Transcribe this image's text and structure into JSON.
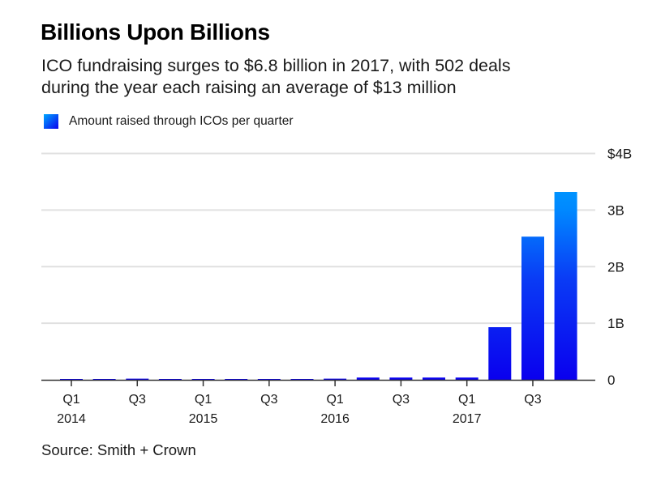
{
  "header": {
    "title": "Billions Upon Billions",
    "subtitle_line1": "ICO fundraising surges to $6.8 billion in 2017, with 502 deals",
    "subtitle_line2": "during the year each raising an average of $13 million"
  },
  "legend": {
    "label": "Amount raised through ICOs per quarter"
  },
  "source": "Source: Smith + Crown",
  "colors": {
    "bar_gradient_bottom": "#0a00ee",
    "bar_gradient_top": "#00aaff",
    "gridline": "#e0e0e0",
    "axis": "#333333"
  },
  "chart_data": {
    "type": "bar",
    "title": "Billions Upon Billions",
    "xlabel": "",
    "ylabel": "",
    "ylim": [
      0,
      4
    ],
    "y_unit": "billion USD",
    "grid": true,
    "y_axis_side": "right",
    "legend_position": "top-left",
    "y_ticks": [
      {
        "value": 0,
        "label": "0"
      },
      {
        "value": 1,
        "label": "1B"
      },
      {
        "value": 2,
        "label": "2B"
      },
      {
        "value": 3,
        "label": "3B"
      },
      {
        "value": 4,
        "label": "$4B"
      }
    ],
    "categories": [
      "Q1 2014",
      "Q2 2014",
      "Q3 2014",
      "Q4 2014",
      "Q1 2015",
      "Q2 2015",
      "Q3 2015",
      "Q4 2015",
      "Q1 2016",
      "Q2 2016",
      "Q3 2016",
      "Q4 2016",
      "Q1 2017",
      "Q2 2017",
      "Q3 2017",
      "Q4 2017"
    ],
    "x_tick_labels": [
      {
        "index": 0,
        "line1": "Q1",
        "line2": "2014"
      },
      {
        "index": 2,
        "line1": "Q3",
        "line2": ""
      },
      {
        "index": 4,
        "line1": "Q1",
        "line2": "2015"
      },
      {
        "index": 6,
        "line1": "Q3",
        "line2": ""
      },
      {
        "index": 8,
        "line1": "Q1",
        "line2": "2016"
      },
      {
        "index": 10,
        "line1": "Q3",
        "line2": ""
      },
      {
        "index": 12,
        "line1": "Q1",
        "line2": "2017"
      },
      {
        "index": 14,
        "line1": "Q3",
        "line2": ""
      }
    ],
    "series": [
      {
        "name": "Amount raised through ICOs per quarter",
        "values": [
          0.01,
          0.01,
          0.02,
          0.01,
          0.01,
          0.01,
          0.01,
          0.01,
          0.02,
          0.04,
          0.04,
          0.04,
          0.04,
          0.93,
          2.53,
          3.32
        ]
      }
    ]
  }
}
